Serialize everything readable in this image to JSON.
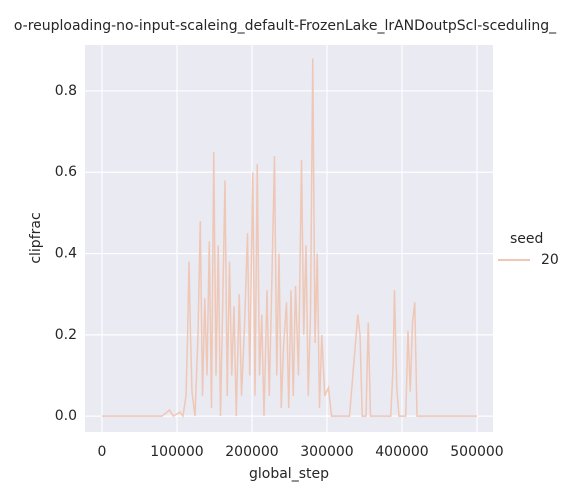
{
  "chart_data": {
    "type": "line",
    "title": "o-reuploading-no-input-scaleing_default-FrozenLake_lrANDoutpScl-sceduling_",
    "xlabel": "global_step",
    "ylabel": "clipfrac",
    "legend_title": "seed",
    "x": [
      0,
      80000,
      90000,
      95000,
      104000,
      108000,
      112000,
      114000,
      116000,
      118000,
      120000,
      124000,
      128000,
      131000,
      134000,
      137000,
      140000,
      143000,
      146000,
      149000,
      152000,
      155000,
      158000,
      161000,
      164000,
      167000,
      170000,
      173000,
      176000,
      179000,
      183000,
      186000,
      190000,
      194000,
      197000,
      201000,
      204000,
      207000,
      210000,
      213000,
      216000,
      220000,
      223000,
      226000,
      230000,
      233000,
      236000,
      239000,
      242000,
      246000,
      249000,
      252000,
      255000,
      258000,
      262000,
      266000,
      269000,
      272000,
      275000,
      278000,
      281000,
      284000,
      287000,
      290000,
      293000,
      297000,
      302000,
      306000,
      330000,
      338000,
      341000,
      344000,
      347000,
      352000,
      355000,
      358000,
      385000,
      388000,
      390000,
      393000,
      396000,
      405000,
      408000,
      411000,
      414000,
      417000,
      420000,
      500000
    ],
    "series": [
      {
        "name": "20",
        "color": "#efc7b6",
        "values": [
          0,
          0,
          0.015,
          0,
          0.01,
          0,
          0.05,
          0.19,
          0.38,
          0.2,
          0.06,
          0,
          0.2,
          0.48,
          0.05,
          0.29,
          0.1,
          0.43,
          0.02,
          0.65,
          0.1,
          0.42,
          0,
          0.28,
          0.58,
          0.05,
          0.38,
          0.1,
          0.27,
          0,
          0.3,
          0.05,
          0.22,
          0.45,
          0.1,
          0.6,
          0.05,
          0.62,
          0.1,
          0.25,
          0,
          0.31,
          0.05,
          0.29,
          0.64,
          0.1,
          0.4,
          0.02,
          0.17,
          0.28,
          0.02,
          0.31,
          0.05,
          0.32,
          0.1,
          0.63,
          0.2,
          0.42,
          0.05,
          0.25,
          0.88,
          0.18,
          0.4,
          0.02,
          0.2,
          0.05,
          0.07,
          0,
          0,
          0.18,
          0.25,
          0.2,
          0,
          0,
          0.23,
          0,
          0,
          0.12,
          0.31,
          0.07,
          0,
          0,
          0.21,
          0.06,
          0.23,
          0.28,
          0,
          0
        ]
      }
    ],
    "xlim": [
      -22667,
      521333
    ],
    "ylim": [
      -0.039,
      0.913
    ],
    "xticks": [
      0,
      100000,
      200000,
      300000,
      400000,
      500000
    ],
    "yticks": [
      {
        "value": 0,
        "label": "0.0"
      },
      0.2,
      0.4,
      0.6,
      0.8
    ],
    "grid": true
  }
}
